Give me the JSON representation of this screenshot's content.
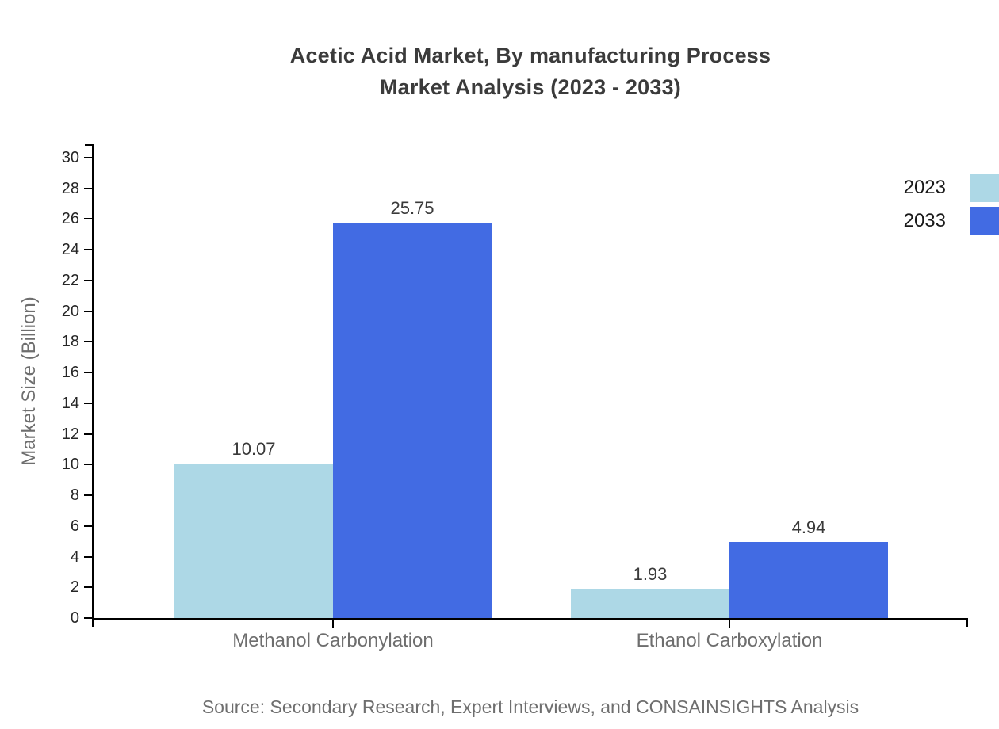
{
  "title": {
    "line1": "Acetic Acid Market, By manufacturing Process",
    "line2": "Market Analysis (2023 - 2033)"
  },
  "footer": {
    "source": "Source: Secondary Research, Expert Interviews, and CONSAINSIGHTS Analysis"
  },
  "chart_data": {
    "type": "bar",
    "title": "Acetic Acid Market, By manufacturing Process Market Analysis (2023 - 2033)",
    "categories": [
      "Methanol Carbonylation",
      "Ethanol Carboxylation"
    ],
    "series": [
      {
        "name": "2023",
        "color": "#ADD8E6",
        "values": [
          10.07,
          1.93
        ]
      },
      {
        "name": "2033",
        "color": "#426BE3",
        "values": [
          25.75,
          4.94
        ]
      }
    ],
    "xlabel": "",
    "ylabel": "Market Size (Billion)",
    "ylim": [
      0,
      30
    ],
    "ytick_step": 2,
    "ytick_labels": [
      "0",
      "2",
      "4",
      "6",
      "8",
      "10",
      "12",
      "14",
      "16",
      "18",
      "20",
      "22",
      "24",
      "26",
      "28",
      "30"
    ],
    "value_labels": [
      [
        "10.07",
        "1.93"
      ],
      [
        "25.75",
        "4.94"
      ]
    ],
    "grid": false,
    "legend_position": "right",
    "legend_entries": [
      "2023",
      "2033"
    ]
  },
  "colors": {
    "background": "#ffffff",
    "axis": "#000000",
    "title_text": "#3b3b3b",
    "tick_text": "#262626",
    "value_label_text": "#3a3a3a",
    "category_text": "#6e6e6e",
    "axis_label_text": "#6e6e6e",
    "source_text": "#6e6e6e",
    "legend_text": "#1a1a1a"
  }
}
